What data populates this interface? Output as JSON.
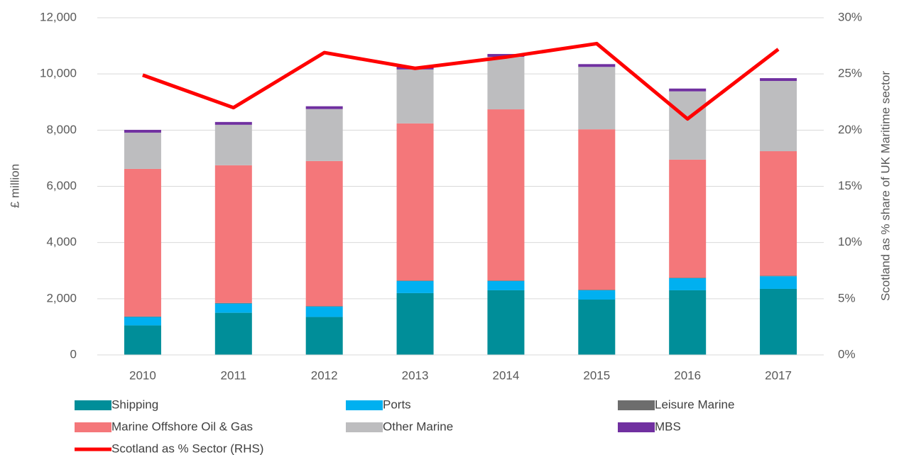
{
  "chart_data": {
    "type": "bar",
    "stacked": true,
    "categories": [
      "2010",
      "2011",
      "2012",
      "2013",
      "2014",
      "2015",
      "2016",
      "2017"
    ],
    "y_label": "£ million",
    "y2_label": "Scotland as % share of UK Maritime sector",
    "ylim": [
      0,
      12000
    ],
    "yticks": [
      0,
      {
        "value": 2000,
        "label": "2,000"
      },
      {
        "value": 4000,
        "label": "4,000"
      },
      {
        "value": 6000,
        "label": "6,000"
      },
      {
        "value": 8000,
        "label": "8,000"
      },
      {
        "value": 10000,
        "label": "10,000"
      },
      {
        "value": 12000,
        "label": "12,000"
      }
    ],
    "y2lim": [
      0,
      30
    ],
    "y2ticks": [
      {
        "value": 0,
        "label": "0%"
      },
      {
        "value": 5,
        "label": "5%"
      },
      {
        "value": 10,
        "label": "10%"
      },
      {
        "value": 15,
        "label": "15%"
      },
      {
        "value": 20,
        "label": "20%"
      },
      {
        "value": 25,
        "label": "25%"
      },
      {
        "value": 30,
        "label": "30%"
      }
    ],
    "grid": true,
    "legend": "bottom",
    "series": [
      {
        "name": "Shipping",
        "color": "#008e99",
        "values": [
          1050,
          1500,
          1350,
          2200,
          2300,
          1970,
          2300,
          2350
        ]
      },
      {
        "name": "Ports",
        "color": "#00b0f0",
        "values": [
          300,
          330,
          370,
          430,
          330,
          330,
          430,
          450
        ]
      },
      {
        "name": "Leisure Marine",
        "color": "#6d6d6d",
        "values": [
          20,
          20,
          20,
          20,
          20,
          20,
          20,
          20
        ]
      },
      {
        "name": "Marine Offshore Oil & Gas",
        "color": "#f4777a",
        "values": [
          5250,
          4900,
          5160,
          5590,
          6090,
          5710,
          4200,
          4430
        ]
      },
      {
        "name": "Other Marine",
        "color": "#bdbdbf",
        "values": [
          1290,
          1440,
          1850,
          1920,
          1870,
          2220,
          2430,
          2500
        ]
      },
      {
        "name": "MBS",
        "color": "#7030a0",
        "values": [
          100,
          100,
          100,
          100,
          100,
          100,
          100,
          100
        ]
      },
      {
        "name": "Scotland as % Sector (RHS)",
        "color": "#ff0000",
        "type": "line",
        "axis": "y2",
        "values": [
          24.9,
          22.0,
          26.9,
          25.5,
          26.5,
          27.7,
          21.0,
          27.2
        ]
      }
    ]
  }
}
